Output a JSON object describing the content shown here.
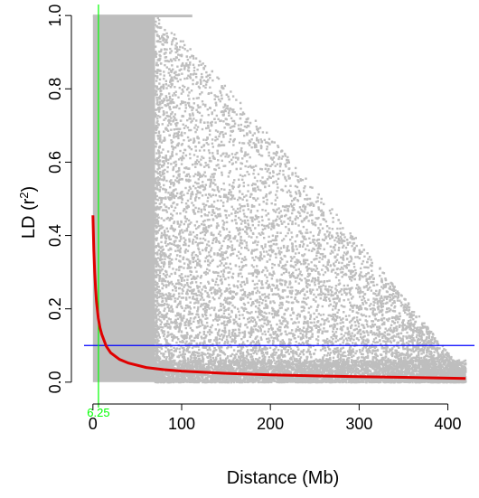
{
  "chart_data": {
    "type": "scatter",
    "xlabel": "Distance (Mb)",
    "ylabel_main": "LD (r",
    "ylabel_sup": "2",
    "ylabel_close": ")",
    "xlim": [
      -10,
      430
    ],
    "ylim": [
      -0.03,
      1.03
    ],
    "xticks": [
      0,
      100,
      200,
      300,
      400
    ],
    "xtick_labels": [
      "0",
      "100",
      "200",
      "300",
      "400"
    ],
    "yticks": [
      0.0,
      0.2,
      0.4,
      0.6,
      0.8,
      1.0
    ],
    "ytick_labels": [
      "0.0",
      "0.2",
      "0.4",
      "0.6",
      "0.8",
      "1.0"
    ],
    "grid": false,
    "legend": "none",
    "colors": {
      "points": "#bebebe",
      "decay_curve": "#e00000",
      "threshold_line": "#0000ff",
      "decay_distance_line": "#00ff00",
      "axes": "#000000"
    },
    "threshold_r2": 0.1,
    "decay_distance": 6.25,
    "decay_distance_label": "6.25",
    "decay_curve": {
      "x": [
        0,
        1,
        2,
        3,
        4,
        6,
        8,
        10,
        15,
        20,
        30,
        40,
        60,
        80,
        100,
        150,
        200,
        250,
        300,
        350,
        400,
        420
      ],
      "y": [
        0.455,
        0.36,
        0.3,
        0.255,
        0.22,
        0.175,
        0.148,
        0.13,
        0.098,
        0.08,
        0.062,
        0.052,
        0.04,
        0.034,
        0.03,
        0.024,
        0.02,
        0.017,
        0.015,
        0.013,
        0.011,
        0.01
      ]
    },
    "point_cloud": {
      "dense_region_x": [
        0,
        70
      ],
      "max_distance": 420,
      "point_count_approx": "dense",
      "note_values": []
    }
  }
}
